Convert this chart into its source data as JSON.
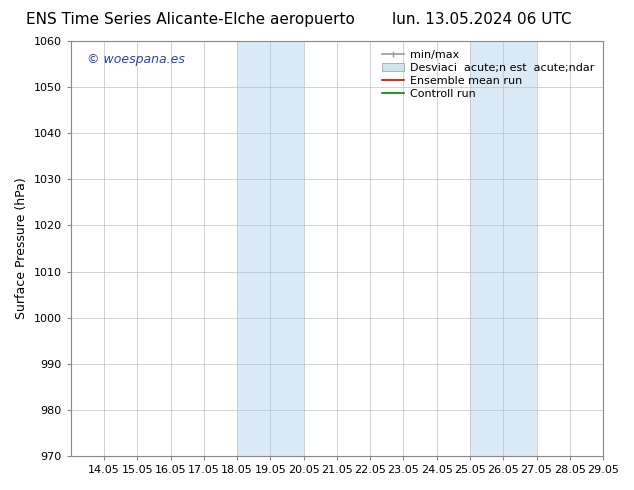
{
  "title_left": "ENS Time Series Alicante-Elche aeropuerto",
  "title_right": "lun. 13.05.2024 06 UTC",
  "ylabel": "Surface Pressure (hPa)",
  "ylim": [
    970,
    1060
  ],
  "yticks": [
    970,
    980,
    990,
    1000,
    1010,
    1020,
    1030,
    1040,
    1050,
    1060
  ],
  "xlim_start": 13,
  "xlim_end": 29,
  "xtick_positions": [
    14,
    15,
    16,
    17,
    18,
    19,
    20,
    21,
    22,
    23,
    24,
    25,
    26,
    27,
    28,
    29
  ],
  "xtick_labels": [
    "14.05",
    "15.05",
    "16.05",
    "17.05",
    "18.05",
    "19.05",
    "20.05",
    "21.05",
    "22.05",
    "23.05",
    "24.05",
    "25.05",
    "26.05",
    "27.05",
    "28.05",
    "29.05"
  ],
  "shaded_regions": [
    {
      "x_start": 18,
      "x_end": 20,
      "color": "#daeaf7"
    },
    {
      "x_start": 25,
      "x_end": 27,
      "color": "#daeaf7"
    }
  ],
  "watermark_text": "© woespana.es",
  "watermark_color": "#2244bb",
  "bg_color": "#ffffff",
  "plot_bg_color": "#ffffff",
  "grid_color": "#c0c0c0",
  "legend_minmax_color": "#999999",
  "legend_desv_color": "#d0e4f0",
  "legend_ens_color": "#dd0000",
  "legend_ctrl_color": "#008800",
  "legend_label_minmax": "min/max",
  "legend_label_desv": "Desviaci  acute;n est  acute;ndar",
  "legend_label_ens": "Ensemble mean run",
  "legend_label_ctrl": "Controll run",
  "title_fontsize": 11,
  "axis_fontsize": 9,
  "tick_fontsize": 8,
  "watermark_fontsize": 9,
  "legend_fontsize": 8
}
